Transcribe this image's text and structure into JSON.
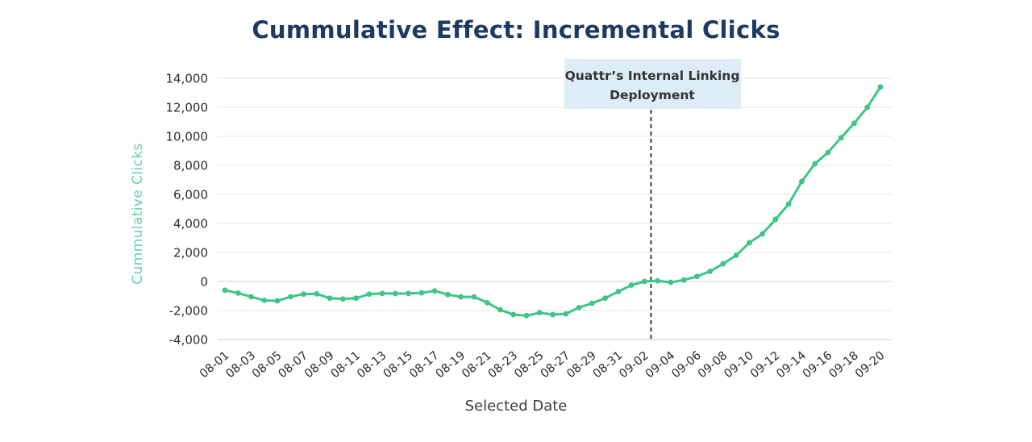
{
  "page": {
    "background": "#ffffff"
  },
  "header": {
    "title": "Cummulative Effect: Incremental Clicks",
    "title_color": "#1d3a60"
  },
  "chart_data": {
    "type": "line",
    "title": "Cummulative Effect: Incremental Clicks",
    "xlabel": "Selected Date",
    "ylabel": "Cummulative Clicks",
    "ylim": [
      -4000,
      14000
    ],
    "yticks": [
      14000,
      12000,
      10000,
      8000,
      6000,
      4000,
      2000,
      0,
      -2000,
      -4000
    ],
    "xticks_shown_every": 2,
    "grid": "horizontal",
    "legend": "none",
    "line_color": "#3fc585",
    "marker": "dot",
    "ylabel_color": "#63d6a1",
    "x": [
      "08-01",
      "08-02",
      "08-03",
      "08-04",
      "08-05",
      "08-06",
      "08-07",
      "08-08",
      "08-09",
      "08-10",
      "08-11",
      "08-12",
      "08-13",
      "08-14",
      "08-15",
      "08-16",
      "08-17",
      "08-18",
      "08-19",
      "08-20",
      "08-21",
      "08-22",
      "08-23",
      "08-24",
      "08-25",
      "08-26",
      "08-27",
      "08-28",
      "08-29",
      "08-30",
      "08-31",
      "09-01",
      "09-02",
      "09-03",
      "09-04",
      "09-05",
      "09-06",
      "09-07",
      "09-08",
      "09-09",
      "09-10",
      "09-11",
      "09-12",
      "09-13",
      "09-14",
      "09-15",
      "09-16",
      "09-17",
      "09-18",
      "09-19",
      "09-20"
    ],
    "values": [
      -600,
      -800,
      -1050,
      -1300,
      -1330,
      -1050,
      -870,
      -850,
      -1150,
      -1200,
      -1150,
      -870,
      -820,
      -830,
      -820,
      -780,
      -650,
      -900,
      -1060,
      -1060,
      -1450,
      -1950,
      -2280,
      -2350,
      -2150,
      -2280,
      -2230,
      -1800,
      -1500,
      -1150,
      -700,
      -250,
      0,
      50,
      -60,
      100,
      350,
      700,
      1220,
      1800,
      2670,
      3280,
      4280,
      5330,
      6890,
      8110,
      8890,
      9900,
      10900,
      12000,
      13400
    ],
    "annotation": {
      "label_line1": "Quattr’s Internal Linking",
      "label_line2": "Deployment",
      "between_dates": [
        "09-02",
        "09-03"
      ],
      "x_index": 32.5,
      "box_fill": "#dcedf8",
      "text_color": "#333333",
      "line_style": "dashed",
      "line_color": "#1c1c1c"
    }
  }
}
